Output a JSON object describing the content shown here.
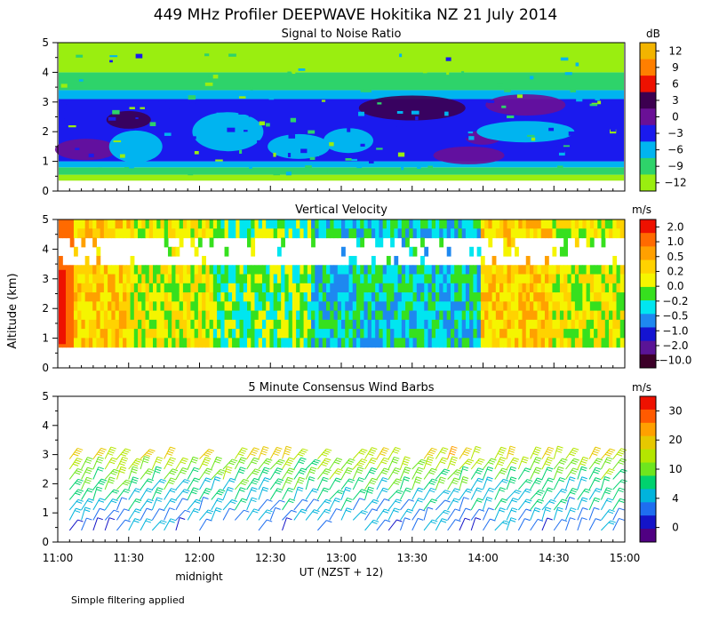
{
  "figure": {
    "title": "449 MHz Profiler DEEPWAVE Hokitika NZ 21 July 2014",
    "shared_ylabel": "Altitude (km)",
    "x_caption": "UT  (NZST + 12)",
    "midnight_label": "midnight",
    "footnote": "Simple filtering applied",
    "x_ticks": [
      "11:00",
      "11:30",
      "12:00",
      "12:30",
      "13:00",
      "13:30",
      "14:00",
      "14:30",
      "15:00"
    ],
    "y_ticks": [
      "0",
      "1",
      "2",
      "3",
      "4",
      "5"
    ]
  },
  "chart_data": [
    {
      "type": "heatmap",
      "title": "Signal to Noise Ratio",
      "xlabel": "UT  (NZST + 12)",
      "ylabel": "Altitude (km)",
      "xlim_hours": [
        11.0,
        15.0
      ],
      "ylim": [
        0,
        5
      ],
      "colorbar": {
        "unit": "dB",
        "ticks": [
          "12",
          "9",
          "6",
          "3",
          "0",
          "−3",
          "−6",
          "−9",
          "−12"
        ],
        "colors": [
          "#f2b400",
          "#ff7f00",
          "#ee1100",
          "#3c0050",
          "#6a1096",
          "#1a1aee",
          "#00b4f0",
          "#2ed36a",
          "#9aee10"
        ]
      },
      "layers": [
        {
          "from_km": 0.35,
          "to_km": 0.55,
          "color": "#9aee10"
        },
        {
          "from_km": 0.55,
          "to_km": 0.8,
          "color": "#2ed36a"
        },
        {
          "from_km": 0.8,
          "to_km": 1.0,
          "color": "#00b4f0"
        },
        {
          "from_km": 1.0,
          "to_km": 3.1,
          "color": "#1a1aee"
        },
        {
          "from_km": 3.1,
          "to_km": 3.4,
          "color": "#00b4f0"
        },
        {
          "from_km": 3.4,
          "to_km": 4.0,
          "color": "#2ed36a"
        },
        {
          "from_km": 4.0,
          "to_km": 5.0,
          "color": "#9aee10"
        }
      ]
    },
    {
      "type": "heatmap",
      "title": "Vertical Velocity",
      "xlabel": "UT  (NZST + 12)",
      "ylabel": "Altitude (km)",
      "xlim_hours": [
        11.0,
        15.0
      ],
      "ylim": [
        0,
        5
      ],
      "data_range_km": [
        0.7,
        5.0
      ],
      "gap_km": [
        3.6,
        4.3
      ],
      "colorbar": {
        "unit": "m/s",
        "ticks": [
          "2.0",
          "1.0",
          "0.5",
          "0.2",
          "0.0",
          "−0.2",
          "−0.5",
          "−1.0",
          "−2.0",
          "−10.0"
        ],
        "colors": [
          "#ee1100",
          "#ff6a00",
          "#ffa000",
          "#ffd200",
          "#f5f500",
          "#36e01e",
          "#00e6f0",
          "#1e88f0",
          "#1414d2",
          "#5a1496",
          "#3c0028"
        ]
      },
      "dominant_values": [
        {
          "from_hour": 11.0,
          "to_hour": 11.1,
          "value": "2.0"
        },
        {
          "from_hour": 11.1,
          "to_hour": 11.5,
          "value": "0.2"
        },
        {
          "from_hour": 11.5,
          "to_hour": 12.1,
          "value": "0.0"
        },
        {
          "from_hour": 12.1,
          "to_hour": 12.8,
          "value": "−0.2"
        },
        {
          "from_hour": 12.8,
          "to_hour": 13.3,
          "value": "−0.5"
        },
        {
          "from_hour": 13.3,
          "to_hour": 14.0,
          "value": "−0.5"
        },
        {
          "from_hour": 14.0,
          "to_hour": 14.5,
          "value": "0.2"
        },
        {
          "from_hour": 14.5,
          "to_hour": 15.0,
          "value": "0.0"
        }
      ]
    },
    {
      "type": "scatter",
      "title": "5 Minute Consensus Wind Barbs",
      "xlabel": "UT  (NZST + 12)",
      "ylabel": "Altitude (km)",
      "xlim_hours": [
        11.0,
        15.0
      ],
      "ylim": [
        0,
        5
      ],
      "interval_minutes": 5,
      "barb_altitudes_km": [
        0.4,
        0.75,
        1.1,
        1.45,
        1.8,
        2.15,
        2.5,
        2.85
      ],
      "colorbar": {
        "unit": "m/s",
        "ticks": [
          "30",
          "20",
          "10",
          "4",
          "0"
        ],
        "colors": [
          "#ee1100",
          "#ff5a00",
          "#ffa000",
          "#e6c800",
          "#b4e600",
          "#6ee61e",
          "#00d26e",
          "#00b4dc",
          "#1e6ef0",
          "#1414c8",
          "#500082"
        ]
      },
      "speed_profile": [
        {
          "altitude_km": 0.4,
          "speed_ms": 6
        },
        {
          "altitude_km": 1.1,
          "speed_ms": 9
        },
        {
          "altitude_km": 1.8,
          "speed_ms": 12
        },
        {
          "altitude_km": 2.5,
          "speed_ms": 16
        },
        {
          "altitude_km": 2.85,
          "speed_ms": 20
        }
      ]
    }
  ]
}
